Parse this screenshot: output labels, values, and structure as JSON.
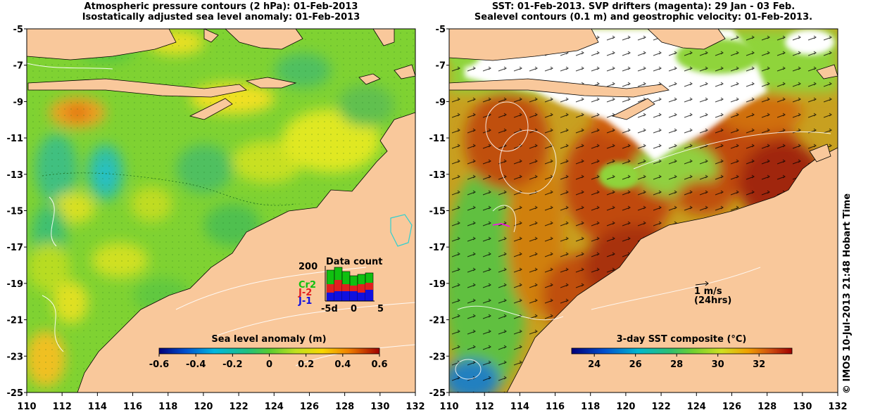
{
  "left_panel": {
    "title_line1": "Atmospheric pressure contours (2 hPa): 01-Feb-2013",
    "title_line2": "Isostatically adjusted sea level anomaly: 01-Feb-2013",
    "colorbar_title": "Sea level anomaly (m)",
    "colorbar_ticks": [
      "-0.6",
      "-0.4",
      "-0.2",
      "0",
      "0.2",
      "0.4",
      "0.6"
    ],
    "colorbar_range": [
      -0.6,
      0.6
    ],
    "inset": {
      "title": "Data count",
      "y_tick": "200",
      "x_ticks": [
        "-5d",
        "0",
        "5"
      ],
      "legend": [
        {
          "label": "Cr2",
          "color": "#10c010"
        },
        {
          "label": "J-2",
          "color": "#e02020"
        },
        {
          "label": "J-1",
          "color": "#1010e0"
        }
      ]
    }
  },
  "right_panel": {
    "title_line1": "SST: 01-Feb-2013. SVP drifters (magenta): 29 Jan - 03 Feb.",
    "title_line2": "Sealevel contours (0.1 m) and geostrophic velocity: 01-Feb-2013.",
    "colorbar_title": "3-day SST composite (°C)",
    "colorbar_ticks": [
      "24",
      "26",
      "28",
      "30",
      "32"
    ],
    "velocity_scale_label": "1 m/s",
    "velocity_scale_sub": "(24hrs)"
  },
  "axes": {
    "x_ticks": [
      "110",
      "112",
      "114",
      "116",
      "118",
      "120",
      "122",
      "124",
      "126",
      "128",
      "130",
      "132"
    ],
    "y_ticks": [
      "-5",
      "-7",
      "-9",
      "-11",
      "-13",
      "-15",
      "-17",
      "-19",
      "-21",
      "-23",
      "-25"
    ]
  },
  "copyright": "© IMOS 10-Jul-2013 21:48 Hobart Time",
  "colors": {
    "land": "#f9c89b",
    "ocean_left": "#7fd232",
    "ocean_right_warm": "#c2410c",
    "ocean_right_cool": "#8fd43a",
    "cloud": "#ffffff"
  }
}
